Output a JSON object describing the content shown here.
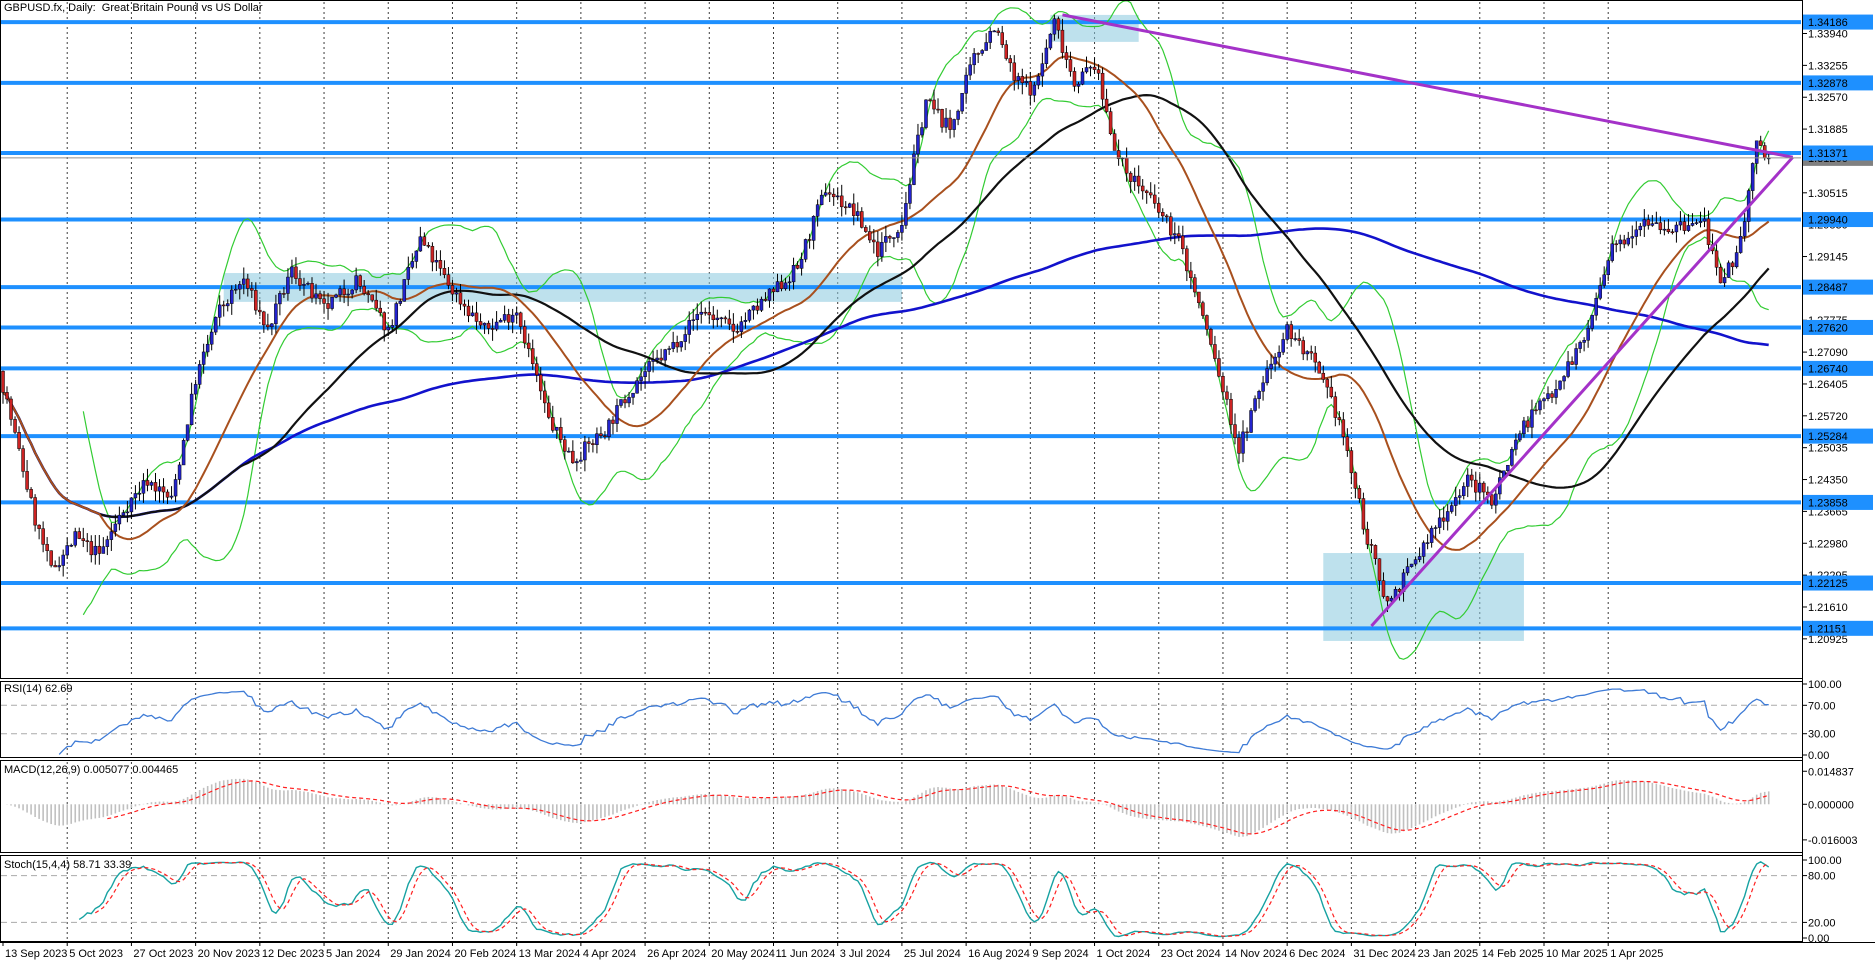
{
  "window": {
    "title": "GBPUSD.fx, Daily:  Great Britain Pound vs US Dollar"
  },
  "colors": {
    "bull_candle": "#2323cc",
    "bear_candle": "#cc2323",
    "candle_outline": "#000000",
    "ma_fast": "#a8501e",
    "ma_mid": "#111111",
    "ma_slow": "#1212cc",
    "bollinger": "#33cc33",
    "level_line": "#1e90ff",
    "level_badge_bg": "#1e90ff",
    "current_price_badge_bg": "#808080",
    "zone_fill": "rgba(136,200,222,0.55)",
    "trendline": "#a432c8",
    "rsi_line": "#3e7bd6",
    "macd_hist": "#c0c0c0",
    "signal_dashed": "#ff2020",
    "stoch_k": "#17a2a2",
    "grid_dash": "#3c3c3c",
    "indicator_level_dash": "#aaaaaa"
  },
  "price_axis": {
    "plain_ticks": [
      {
        "value": 1.3394,
        "label": "1.33940"
      },
      {
        "value": 1.33255,
        "label": "1.33255"
      },
      {
        "value": 1.3257,
        "label": "1.32570"
      },
      {
        "value": 1.31885,
        "label": "1.31885"
      },
      {
        "value": 1.30515,
        "label": "1.30515"
      },
      {
        "value": 1.2983,
        "label": "1.29830"
      },
      {
        "value": 1.29145,
        "label": "1.29145"
      },
      {
        "value": 1.27775,
        "label": "1.27775"
      },
      {
        "value": 1.2709,
        "label": "1.27090"
      },
      {
        "value": 1.26405,
        "label": "1.26405"
      },
      {
        "value": 1.2572,
        "label": "1.25720"
      },
      {
        "value": 1.25035,
        "label": "1.25035"
      },
      {
        "value": 1.2435,
        "label": "1.24350"
      },
      {
        "value": 1.23665,
        "label": "1.23665"
      },
      {
        "value": 1.2298,
        "label": "1.22980"
      },
      {
        "value": 1.22295,
        "label": "1.22295"
      },
      {
        "value": 1.2161,
        "label": "1.21610"
      },
      {
        "value": 1.20925,
        "label": "1.20925"
      }
    ],
    "line_badges": [
      {
        "value": 1.34186,
        "label": "1.34186"
      },
      {
        "value": 1.32878,
        "label": "1.32878"
      },
      {
        "value": 1.31371,
        "label": "1.31371"
      },
      {
        "value": 1.2994,
        "label": "1.29940"
      },
      {
        "value": 1.28487,
        "label": "1.28487"
      },
      {
        "value": 1.2762,
        "label": "1.27620"
      },
      {
        "value": 1.2674,
        "label": "1.26740"
      },
      {
        "value": 1.25284,
        "label": "1.25284"
      },
      {
        "value": 1.23858,
        "label": "1.23858"
      },
      {
        "value": 1.22125,
        "label": "1.22125"
      },
      {
        "value": 1.21151,
        "label": "1.21151"
      }
    ],
    "current_price": {
      "value": 1.31266,
      "label": "1.31266"
    }
  },
  "date_axis": [
    "13 Sep 2023",
    "5 Oct 2023",
    "27 Oct 2023",
    "20 Nov 2023",
    "12 Dec 2023",
    "5 Jan 2024",
    "29 Jan 2024",
    "20 Feb 2024",
    "13 Mar 2024",
    "4 Apr 2024",
    "26 Apr 2024",
    "20 May 2024",
    "11 Jun 2024",
    "3 Jul 2024",
    "25 Jul 2024",
    "16 Aug 2024",
    "9 Sep 2024",
    "1 Oct 2024",
    "23 Oct 2024",
    "14 Nov 2024",
    "6 Dec 2024",
    "31 Dec 2024",
    "23 Jan 2025",
    "14 Feb 2025",
    "10 Mar 2025",
    "1 Apr 2025"
  ],
  "panes": {
    "rsi": {
      "label": "RSI(14) 62.69",
      "axis": [
        {
          "value": 100,
          "label": "100.00"
        },
        {
          "value": 70,
          "label": "70.00",
          "dashed": true
        },
        {
          "value": 30,
          "label": "30.00",
          "dashed": true
        },
        {
          "value": 0,
          "label": "0.00"
        }
      ]
    },
    "macd": {
      "label": "MACD(12,26,9) 0.005077 0.004465",
      "axis": [
        {
          "value": 0.014837,
          "label": "0.014837"
        },
        {
          "value": 0.0,
          "label": "0.000000"
        },
        {
          "value": -0.016003,
          "label": "-0.016003"
        }
      ]
    },
    "stoch": {
      "label": "Stoch(15,4,4) 58.71 33.39",
      "axis": [
        {
          "value": 100,
          "label": "100.00"
        },
        {
          "value": 80,
          "label": "80.00",
          "dashed": true
        },
        {
          "value": 20,
          "label": "20.00",
          "dashed": true
        },
        {
          "value": 0,
          "label": "0.00"
        }
      ]
    }
  },
  "chart_data": {
    "type": "candlestick",
    "symbol": "GBPUSD.fx",
    "timeframe": "Daily",
    "title": "GBPUSD.fx, Daily:  Great Britain Pound vs US Dollar",
    "y_range": [
      1.20083,
      1.34639
    ],
    "bars_total": 441,
    "bars_per_x_tick": 16,
    "x_tick_labels": [
      "13 Sep 2023",
      "5 Oct 2023",
      "27 Oct 2023",
      "20 Nov 2023",
      "12 Dec 2023",
      "5 Jan 2024",
      "29 Jan 2024",
      "20 Feb 2024",
      "13 Mar 2024",
      "4 Apr 2024",
      "26 Apr 2024",
      "20 May 2024",
      "11 Jun 2024",
      "3 Jul 2024",
      "25 Jul 2024",
      "16 Aug 2024",
      "9 Sep 2024",
      "1 Oct 2024",
      "23 Oct 2024",
      "14 Nov 2024",
      "6 Dec 2024",
      "31 Dec 2024",
      "23 Jan 2025",
      "14 Feb 2025",
      "10 Mar 2025",
      "1 Apr 2025"
    ],
    "noise": 0.0016,
    "price_path_anchors": [
      [
        0,
        1.2638
      ],
      [
        8,
        1.2348
      ],
      [
        12,
        1.224
      ],
      [
        18,
        1.231
      ],
      [
        24,
        1.2273
      ],
      [
        30,
        1.237
      ],
      [
        36,
        1.2434
      ],
      [
        42,
        1.239
      ],
      [
        48,
        1.265
      ],
      [
        54,
        1.28
      ],
      [
        60,
        1.2864
      ],
      [
        66,
        1.2756
      ],
      [
        72,
        1.2885
      ],
      [
        80,
        1.28
      ],
      [
        88,
        1.2864
      ],
      [
        96,
        1.2756
      ],
      [
        104,
        1.295
      ],
      [
        112,
        1.2842
      ],
      [
        120,
        1.2756
      ],
      [
        128,
        1.28
      ],
      [
        136,
        1.2563
      ],
      [
        142,
        1.2477
      ],
      [
        150,
        1.2541
      ],
      [
        158,
        1.265
      ],
      [
        166,
        1.2714
      ],
      [
        174,
        1.28
      ],
      [
        182,
        1.2756
      ],
      [
        190,
        1.2821
      ],
      [
        198,
        1.289
      ],
      [
        205,
        1.306
      ],
      [
        212,
        1.301
      ],
      [
        218,
        1.2928
      ],
      [
        224,
        1.299
      ],
      [
        230,
        1.3251
      ],
      [
        236,
        1.3187
      ],
      [
        242,
        1.334
      ],
      [
        247,
        1.3412
      ],
      [
        252,
        1.3294
      ],
      [
        257,
        1.3273
      ],
      [
        262,
        1.342
      ],
      [
        267,
        1.329
      ],
      [
        272,
        1.3327
      ],
      [
        278,
        1.3122
      ],
      [
        285,
        1.3047
      ],
      [
        293,
        1.295
      ],
      [
        300,
        1.2756
      ],
      [
        308,
        1.2499
      ],
      [
        314,
        1.2649
      ],
      [
        320,
        1.276
      ],
      [
        326,
        1.2692
      ],
      [
        333,
        1.2563
      ],
      [
        340,
        1.2305
      ],
      [
        345,
        1.217
      ],
      [
        352,
        1.2262
      ],
      [
        358,
        1.2348
      ],
      [
        365,
        1.2434
      ],
      [
        371,
        1.2391
      ],
      [
        378,
        1.2541
      ],
      [
        386,
        1.2627
      ],
      [
        394,
        1.2735
      ],
      [
        401,
        1.2928
      ],
      [
        409,
        1.3
      ],
      [
        416,
        1.2972
      ],
      [
        424,
        1.299
      ],
      [
        428,
        1.2842
      ],
      [
        433,
        1.295
      ],
      [
        437,
        1.3155
      ],
      [
        440,
        1.3126
      ]
    ],
    "horizontal_lines": [
      1.34186,
      1.32878,
      1.31371,
      1.2994,
      1.28487,
      1.2762,
      1.2674,
      1.25284,
      1.23858,
      1.22125,
      1.21151
    ],
    "current_price": 1.31266,
    "zones": [
      {
        "bar_from": 55,
        "bar_to": 224,
        "price_from": 1.2817,
        "price_to": 1.2879
      },
      {
        "bar_from": 261,
        "bar_to": 283,
        "price_from": 1.3376,
        "price_to": 1.3434
      },
      {
        "bar_from": 329,
        "bar_to": 379,
        "price_from": 1.2088,
        "price_to": 1.2277
      }
    ],
    "trendlines": [
      {
        "from": [
          264,
          1.3434
        ],
        "to": [
          446,
          1.3128
        ]
      },
      {
        "from": [
          341,
          1.212
        ],
        "to": [
          446,
          1.3128
        ]
      }
    ],
    "overlays": [
      {
        "name": "bollinger",
        "period": 20,
        "deviation": 2
      },
      {
        "name": "sma_fast",
        "period": 25
      },
      {
        "name": "sma_mid",
        "period": 60
      },
      {
        "name": "sma_slow",
        "period": 170
      }
    ],
    "indicators": {
      "rsi": {
        "period": 14,
        "current": 62.69
      },
      "macd": {
        "fast": 12,
        "slow": 26,
        "signal": 9,
        "current": 0.005077,
        "current_signal": 0.004465,
        "axis_max": 0.014837,
        "axis_min": -0.016003
      },
      "stoch": {
        "k_period": 15,
        "slowing": 4,
        "d_period": 4,
        "current_k": 58.71,
        "current_d": 33.39
      }
    }
  }
}
